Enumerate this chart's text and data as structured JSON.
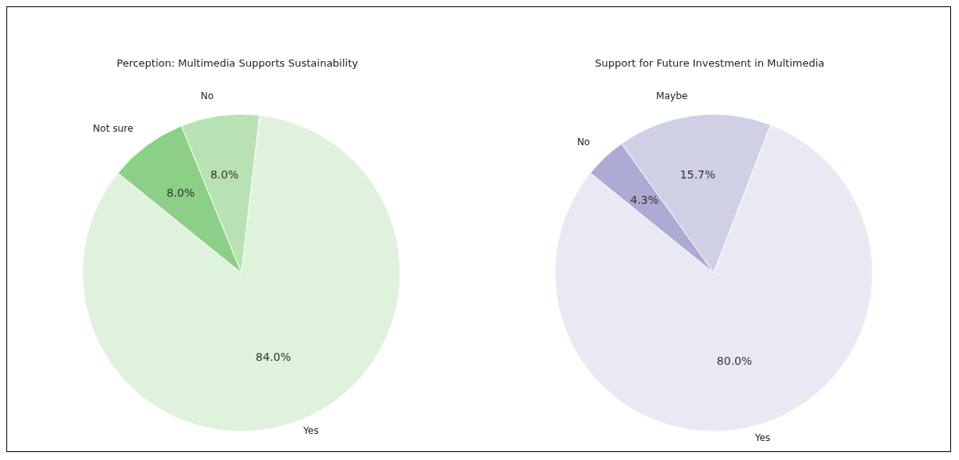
{
  "chart_data": [
    {
      "type": "pie",
      "title": "Perception: Multimedia Supports Sustainability",
      "categories": [
        "Yes",
        "No",
        "Not sure"
      ],
      "values": [
        84.0,
        8.0,
        8.0
      ],
      "colors": [
        "#dff2dc",
        "#b8e2b3",
        "#8ccf86"
      ],
      "value_labels": [
        "84.0%",
        "8.0%",
        "8.0%"
      ]
    },
    {
      "type": "pie",
      "title": "Support for Future Investment in Multimedia",
      "categories": [
        "Yes",
        "Maybe",
        "No"
      ],
      "values": [
        80.0,
        15.7,
        4.3
      ],
      "colors": [
        "#eae9f3",
        "#cfcfe5",
        "#adabd3"
      ],
      "value_labels": [
        "80.0%",
        "15.7%",
        "4.3%"
      ]
    }
  ]
}
